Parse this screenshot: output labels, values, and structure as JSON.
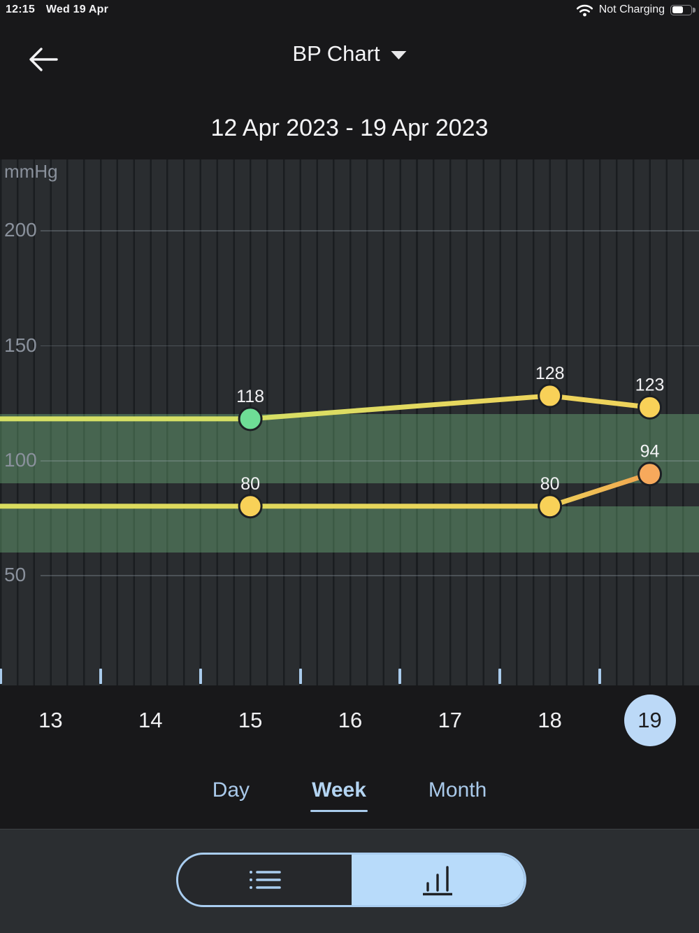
{
  "status_bar": {
    "time": "12:15",
    "date": "Wed 19 Apr",
    "battery_label": "Not Charging",
    "battery_level": 0.55
  },
  "header": {
    "title": "BP Chart"
  },
  "date_range": "12 Apr 2023 - 19 Apr 2023",
  "period_tabs": {
    "items": [
      {
        "label": "Day",
        "selected": false
      },
      {
        "label": "Week",
        "selected": true
      },
      {
        "label": "Month",
        "selected": false
      }
    ]
  },
  "view_toggle": {
    "options": [
      "list",
      "chart"
    ],
    "selected": "chart"
  },
  "colors": {
    "accent_blue": "#a9cbec",
    "selected_day_circle": "#bcd9f7",
    "capsule_fill": "#b8dbfa",
    "normal_band_green": "rgba(134,222,148,0.32)",
    "dot_green": "#6edd96",
    "dot_yellow": "#f8d158",
    "dot_orange": "#f7a95c"
  },
  "chart_data": {
    "type": "line",
    "title": "BP Chart",
    "subtitle": "12 Apr 2023 - 19 Apr 2023",
    "unit": "mmHg",
    "x_label_days": [
      13,
      14,
      15,
      16,
      17,
      18,
      19
    ],
    "selected_day": 19,
    "y_ticks": [
      200,
      150,
      100,
      50
    ],
    "y_axis_range_approx": [
      0,
      230
    ],
    "grid": "on",
    "reference_bands": [
      {
        "name": "systolic-normal",
        "from": 90,
        "to": 120
      },
      {
        "name": "diastolic-normal",
        "from": 60,
        "to": 80
      }
    ],
    "series": [
      {
        "name": "systolic",
        "extends_flat_from_left_edge": true,
        "lead_line_color": "#d6e065",
        "points": [
          {
            "day": 15,
            "value": 118,
            "dot_color": "#6edd96",
            "line_color": "#d6e065"
          },
          {
            "day": 18,
            "value": 128,
            "dot_color": "#f8d158",
            "line_color": "#eed45c"
          },
          {
            "day": 19,
            "value": 123,
            "dot_color": "#f8d158",
            "line_color": "#eed45c"
          }
        ]
      },
      {
        "name": "diastolic",
        "extends_flat_from_left_edge": true,
        "lead_line_color": "#d9dd5f",
        "points": [
          {
            "day": 15,
            "value": 80,
            "dot_color": "#f8d158",
            "line_color": "#e0d95c"
          },
          {
            "day": 18,
            "value": 80,
            "dot_color": "#f8d158",
            "line_color": "#efd35a"
          },
          {
            "day": 19,
            "value": 94,
            "dot_color": "#f7a95c",
            "line_color": "#f0a24f"
          }
        ]
      }
    ]
  }
}
